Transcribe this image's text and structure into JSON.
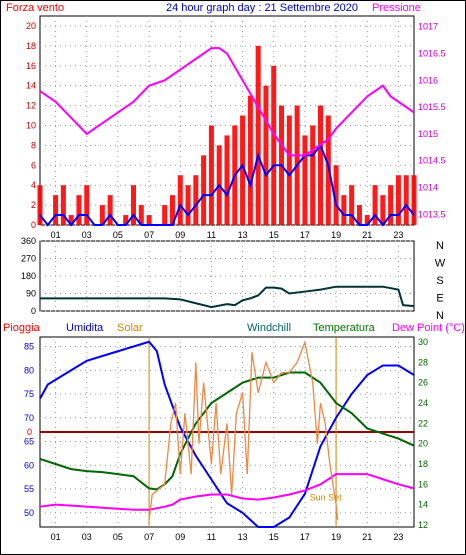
{
  "header": {
    "left_label": "Forza vento",
    "title": "24 hour graph day : 21 Settembre 2020",
    "right_label": "Pressione"
  },
  "x_ticks": [
    "01",
    "03",
    "05",
    "07",
    "09",
    "11",
    "13",
    "15",
    "17",
    "19",
    "21",
    "23"
  ],
  "colors": {
    "wind_speed": "#ff0000",
    "wind_avg": "#0000ff",
    "pressure": "#ff00ff",
    "direction": "#003333",
    "humidity": "#0000ff",
    "solar": "#ee8844",
    "windchill": "#006600",
    "temperature": "#006600",
    "dew_point": "#ff00ff",
    "rain": "#990000",
    "sunset": "#cc8800"
  },
  "chart_data": [
    {
      "type": "area",
      "name": "wind_pressure",
      "xlim": [
        0,
        24
      ],
      "y_left": {
        "label": "Forza vento",
        "ticks": [
          "0",
          "2",
          "4",
          "6",
          "8",
          "10",
          "12",
          "14",
          "16",
          "18",
          "20"
        ],
        "ylim": [
          0,
          21
        ]
      },
      "y_right": {
        "label": "Pressione",
        "ticks": [
          "1013.5",
          "1014",
          "1014.5",
          "1015",
          "1015.5",
          "1016",
          "1016.5",
          "1017"
        ],
        "ylim": [
          1013.3,
          1017.2
        ]
      },
      "series": [
        {
          "name": "Forza vento",
          "kind": "gust",
          "x": [
            0,
            0.5,
            1,
            1.5,
            2,
            2.5,
            3,
            3.5,
            4,
            4.5,
            5,
            5.5,
            6,
            6.5,
            7,
            7.5,
            8,
            8.5,
            9,
            9.5,
            10,
            10.5,
            11,
            11.5,
            12,
            12.5,
            13,
            13.5,
            14,
            14.5,
            15,
            15.5,
            16,
            16.5,
            17,
            17.5,
            18,
            18.5,
            19,
            19.5,
            20,
            20.5,
            21,
            21.5,
            22,
            22.5,
            23,
            23.5,
            24
          ],
          "y": [
            4,
            0,
            3,
            4,
            1,
            3,
            4,
            0,
            2,
            3,
            0,
            1,
            4,
            2,
            1,
            0,
            2,
            3,
            5,
            4,
            5,
            7,
            10,
            8,
            9,
            10,
            11,
            13,
            18,
            14,
            16,
            12,
            11,
            12,
            9,
            10,
            12,
            11,
            6,
            3,
            4,
            2,
            1,
            4,
            3,
            4,
            5,
            5,
            5
          ]
        },
        {
          "name": "media",
          "kind": "avg",
          "x": [
            0,
            0.5,
            1,
            1.5,
            2,
            2.5,
            3,
            3.5,
            4,
            4.5,
            5,
            5.5,
            6,
            6.5,
            7,
            7.5,
            8,
            8.5,
            9,
            9.5,
            10,
            10.5,
            11,
            11.5,
            12,
            12.5,
            13,
            13.5,
            14,
            14.5,
            15,
            15.5,
            16,
            16.5,
            17,
            17.5,
            18,
            18.5,
            19,
            19.5,
            20,
            20.5,
            21,
            21.5,
            22,
            22.5,
            23,
            23.5,
            24
          ],
          "y": [
            1,
            0,
            1,
            1,
            0,
            1,
            1,
            0,
            0,
            1,
            0,
            0,
            1,
            0,
            0,
            0,
            0,
            0,
            2,
            1,
            2,
            3,
            3,
            4,
            3,
            5,
            6,
            4,
            7,
            5,
            6,
            6,
            5,
            6,
            7,
            7,
            8,
            6,
            2,
            1,
            1,
            0,
            0,
            1,
            0,
            1,
            1,
            2,
            1
          ]
        },
        {
          "name": "Pressione",
          "kind": "pressure",
          "axis": "right",
          "x": [
            0,
            1,
            2,
            3,
            4,
            5,
            6,
            7,
            8,
            9,
            10,
            11,
            11.5,
            12,
            13,
            14,
            15,
            16,
            17,
            18,
            18.5,
            19,
            20,
            21,
            22,
            22.5,
            23,
            24
          ],
          "y": [
            1015.8,
            1015.6,
            1015.3,
            1015.0,
            1015.2,
            1015.4,
            1015.6,
            1015.9,
            1016.0,
            1016.2,
            1016.4,
            1016.6,
            1016.6,
            1016.5,
            1016.0,
            1015.5,
            1015.0,
            1014.6,
            1014.6,
            1014.8,
            1014.9,
            1015.1,
            1015.4,
            1015.7,
            1015.9,
            1015.7,
            1015.6,
            1015.4
          ]
        }
      ]
    },
    {
      "type": "line",
      "name": "wind_direction",
      "xlim": [
        0,
        24
      ],
      "y_left": {
        "ticks": [
          "0",
          "90",
          "180",
          "270",
          "360"
        ],
        "ylim": [
          0,
          360
        ]
      },
      "y_right": {
        "ticks": [
          "N",
          "W",
          "S",
          "E",
          "N"
        ]
      },
      "series": [
        {
          "name": "Direzione",
          "x": [
            0,
            1,
            2,
            3,
            4,
            5,
            6,
            7,
            8,
            9,
            10,
            11,
            12,
            12.5,
            13,
            13.5,
            14,
            14.5,
            15,
            15.5,
            16,
            17,
            18,
            19,
            20,
            21,
            22,
            23,
            23.3,
            24
          ],
          "y": [
            65,
            65,
            65,
            65,
            65,
            65,
            65,
            65,
            65,
            60,
            40,
            20,
            35,
            30,
            55,
            65,
            80,
            120,
            120,
            115,
            90,
            100,
            110,
            125,
            125,
            125,
            125,
            110,
            30,
            25
          ]
        }
      ]
    },
    {
      "type": "line",
      "name": "humidity_temperature",
      "xlim": [
        0,
        24
      ],
      "legend": [
        "Pioggia",
        "Umidita",
        "Solar",
        "Windchill",
        "Temperatura",
        "Dew Point (°C)"
      ],
      "y_left": {
        "ticks": [
          "50",
          "55",
          "60",
          "65",
          "70",
          "75",
          "80",
          "85"
        ],
        "ylim": [
          47,
          87
        ],
        "zero_label": "0"
      },
      "y_right": {
        "ticks": [
          "12",
          "14",
          "16",
          "18",
          "20",
          "22",
          "24",
          "26",
          "28",
          "30"
        ],
        "ylim": [
          11.8,
          30.5
        ]
      },
      "annotation": "Sun Set",
      "series": [
        {
          "name": "Umidita",
          "axis": "left",
          "x": [
            0,
            0.5,
            1,
            2,
            3,
            4,
            5,
            6,
            7,
            7.5,
            8,
            9,
            10,
            11,
            12,
            13,
            14,
            15,
            16,
            17,
            18,
            19,
            20,
            21,
            22,
            23,
            24
          ],
          "y": [
            74,
            77,
            78,
            80,
            82,
            83,
            84,
            85,
            86,
            84,
            77,
            68,
            62,
            57,
            52,
            50,
            47,
            47,
            49,
            54,
            64,
            70,
            75,
            79,
            81,
            81,
            79
          ]
        },
        {
          "name": "Temperatura",
          "axis": "right",
          "x": [
            0,
            1,
            2,
            3,
            4,
            5,
            6,
            7,
            7.5,
            8,
            8.5,
            9,
            10,
            11,
            12,
            13,
            14,
            15,
            16,
            17,
            18,
            19,
            20,
            21,
            22,
            23,
            24
          ],
          "y": [
            18.5,
            18,
            17.5,
            17.3,
            17.2,
            17,
            16.8,
            15.6,
            15.5,
            16,
            16.8,
            19,
            22,
            24,
            25,
            26,
            26.5,
            26.5,
            27,
            27,
            26,
            24,
            23,
            21.5,
            21,
            20.5,
            19.8
          ]
        },
        {
          "name": "Dew Point",
          "axis": "right",
          "x": [
            0,
            1,
            2,
            3,
            4,
            5,
            6,
            7,
            8,
            8.5,
            9,
            10,
            11,
            12,
            13,
            14,
            15,
            16,
            17,
            18,
            19,
            20,
            21,
            22,
            23,
            24
          ],
          "y": [
            13.8,
            14,
            13.9,
            13.8,
            13.7,
            13.6,
            13.5,
            13.5,
            13.8,
            14,
            14.5,
            14.8,
            15,
            15,
            14.6,
            14.5,
            14.7,
            15,
            15.4,
            16,
            17,
            17,
            17,
            16.5,
            16,
            15.6
          ]
        },
        {
          "name": "Solar",
          "axis": "right",
          "x": [
            7,
            7.2,
            8,
            8.4,
            8.7,
            9,
            9.3,
            9.7,
            10,
            10.2,
            10.5,
            11,
            11.3,
            11.6,
            12,
            12.3,
            12.6,
            13,
            13.3,
            13.6,
            14,
            14.5,
            15,
            15.5,
            16,
            16.5,
            17,
            17.5,
            17.8,
            18,
            18.3,
            18.6,
            19,
            19.1
          ],
          "y": [
            12.5,
            15,
            16,
            22,
            24,
            17,
            23,
            17,
            28,
            20,
            26,
            18,
            24,
            17,
            22,
            15,
            23,
            25,
            17,
            29,
            25,
            28,
            26,
            27,
            27,
            28,
            30,
            26,
            20,
            24,
            22,
            18,
            14,
            12.5
          ]
        }
      ]
    }
  ]
}
